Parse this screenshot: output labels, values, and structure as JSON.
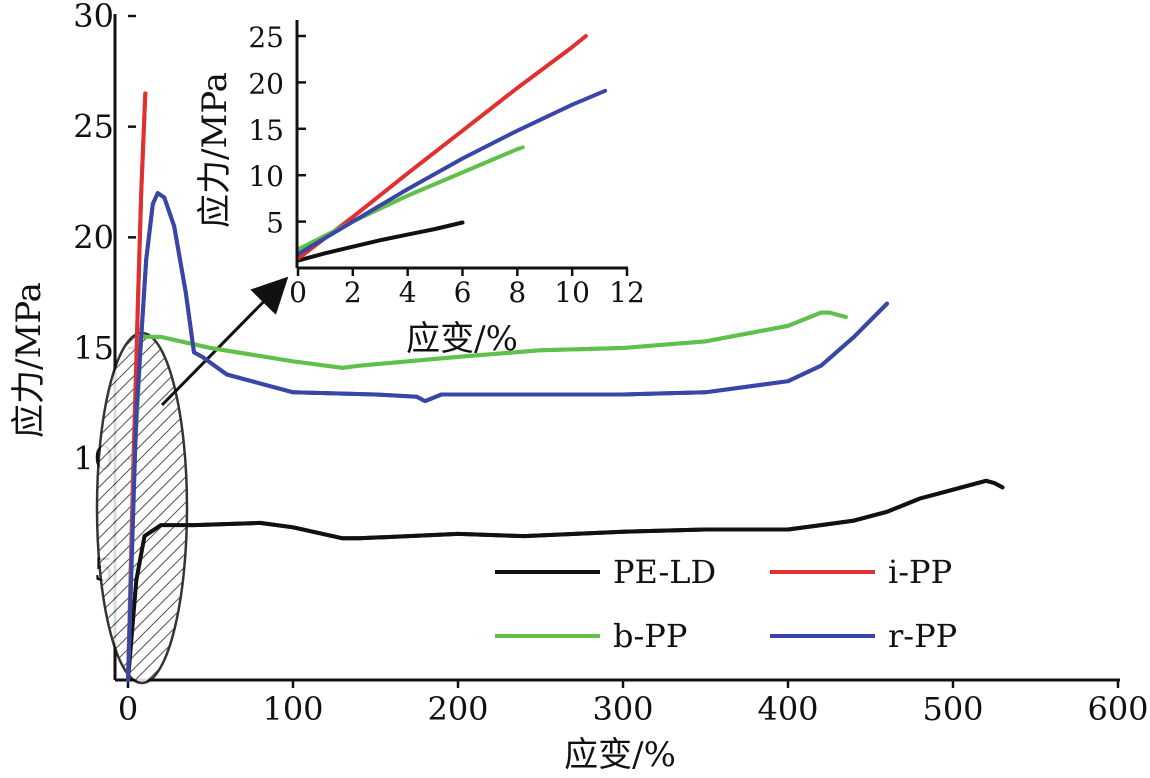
{
  "chart_data": [
    {
      "type": "line",
      "title": "",
      "xlabel": "应变/%",
      "ylabel": "应力/MPa",
      "xlim": [
        0,
        600
      ],
      "ylim": [
        0,
        30
      ],
      "xticks": [
        0,
        100,
        200,
        300,
        400,
        500,
        600
      ],
      "yticks": [
        5,
        10,
        15,
        20,
        25,
        30
      ],
      "legend_placement": "bottom-right",
      "series": [
        {
          "name": "PE-LD",
          "color": "#111111",
          "x": [
            0,
            5,
            10,
            20,
            40,
            80,
            100,
            130,
            140,
            200,
            240,
            300,
            350,
            400,
            420,
            440,
            460,
            480,
            500,
            520,
            525,
            530
          ],
          "y": [
            0,
            4.5,
            6.5,
            7.0,
            7.0,
            7.1,
            6.9,
            6.4,
            6.4,
            6.6,
            6.5,
            6.7,
            6.8,
            6.8,
            7.0,
            7.2,
            7.6,
            8.2,
            8.6,
            9.0,
            8.9,
            8.7
          ]
        },
        {
          "name": "i-PP",
          "color": "#e03030",
          "x": [
            0,
            3,
            6,
            8,
            10.5
          ],
          "y": [
            0,
            9.0,
            17.0,
            22.0,
            26.5
          ]
        },
        {
          "name": "b-PP",
          "color": "#5fc04a",
          "x": [
            0,
            4,
            8,
            20,
            50,
            100,
            130,
            140,
            200,
            250,
            300,
            350,
            400,
            420,
            425,
            435
          ],
          "y": [
            0,
            10.0,
            15.5,
            15.5,
            15.0,
            14.4,
            14.1,
            14.2,
            14.6,
            14.9,
            15.0,
            15.3,
            16.0,
            16.6,
            16.6,
            16.4
          ]
        },
        {
          "name": "r-PP",
          "color": "#3a45a8",
          "x": [
            0,
            5,
            11,
            15,
            18,
            22,
            28,
            35,
            40,
            45,
            60,
            100,
            150,
            175,
            180,
            190,
            250,
            300,
            350,
            400,
            420,
            440,
            460
          ],
          "y": [
            0,
            12.0,
            19.0,
            21.5,
            22.0,
            21.8,
            20.5,
            17.5,
            14.8,
            14.6,
            13.8,
            13.0,
            12.9,
            12.8,
            12.6,
            12.9,
            12.9,
            12.9,
            13.0,
            13.5,
            14.2,
            15.5,
            17.0
          ]
        }
      ]
    },
    {
      "type": "line",
      "title": "",
      "xlabel": "应变/%",
      "ylabel": "应力/MPa",
      "xlim": [
        0,
        12
      ],
      "ylim": [
        0,
        25
      ],
      "xticks": [
        0,
        2,
        4,
        6,
        8,
        10,
        12
      ],
      "yticks": [
        5,
        10,
        15,
        20,
        25
      ],
      "series": [
        {
          "name": "PE-LD",
          "color": "#111111",
          "x": [
            0,
            1,
            2,
            3,
            4,
            5,
            6
          ],
          "y": [
            0.8,
            1.6,
            2.3,
            3.0,
            3.6,
            4.2,
            4.9
          ]
        },
        {
          "name": "i-PP",
          "color": "#e03030",
          "x": [
            0,
            2,
            4,
            6,
            8,
            10,
            10.5
          ],
          "y": [
            1.0,
            5.5,
            10.2,
            14.8,
            19.4,
            23.8,
            25.0
          ]
        },
        {
          "name": "b-PP",
          "color": "#5fc04a",
          "x": [
            0,
            2,
            4,
            6,
            8,
            8.2
          ],
          "y": [
            2.0,
            5.0,
            7.8,
            10.3,
            12.8,
            13.0
          ]
        },
        {
          "name": "r-PP",
          "color": "#3a45a8",
          "x": [
            0,
            2,
            4,
            6,
            8,
            10,
            11.2
          ],
          "y": [
            1.5,
            5.0,
            8.5,
            11.8,
            14.8,
            17.6,
            19.1
          ]
        }
      ]
    }
  ]
}
